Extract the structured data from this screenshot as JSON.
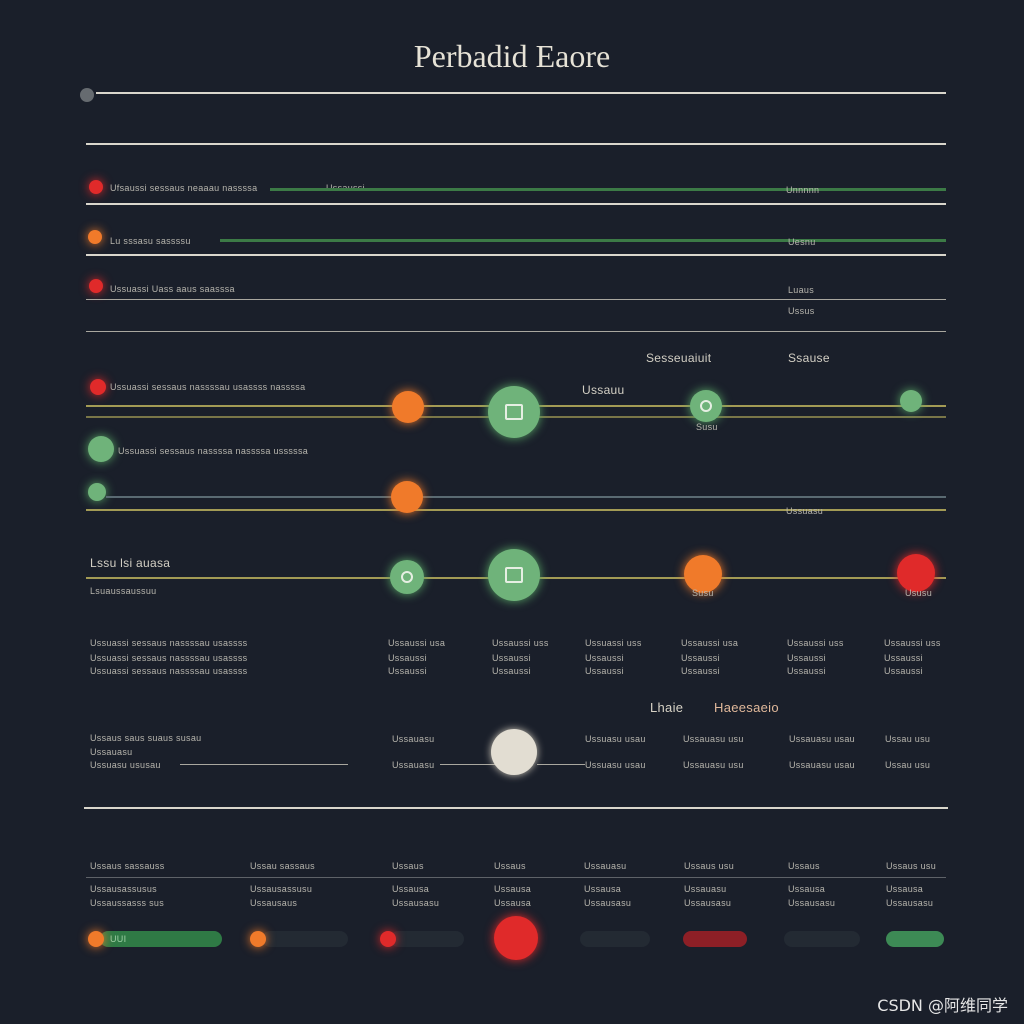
{
  "title": "Perbadid Eaore",
  "rows": [
    {
      "text": "Ufsaussi sessaus neaaau nassssa",
      "mid": "Ussaussi",
      "right": "Unnnnn"
    },
    {
      "text": "Lu sssasu sassssu",
      "right": "Uesnu"
    },
    {
      "text": "Ussuassi Uass aaus saasssa",
      "right": "Luaus",
      "right2": "Ussus"
    }
  ],
  "middle": {
    "header_left": "Sesseuaiuit",
    "header_right": "Ssause",
    "label_mid": "Ussauu",
    "label_small": "Susu",
    "row1_text": "Ussuassi sessaus nassssau usassss nassssa",
    "row2_text": "Ussuassi sessaus nassssa nassssa usssssa",
    "row3_text": "Ussuasu",
    "row4_label": "Lssu lsi auasa",
    "row4_sub": "Lsuaussaussuu",
    "label_small2": "Susu",
    "label_small3": "Ususu"
  },
  "grid": [
    [
      "Ussuassi sessaus nassssau usassss",
      "Ussuassi sessaus nassssau usassss",
      "Ussuassi sessaus nassssau usassss"
    ],
    [
      "Ussaussi usa",
      "Ussaussi",
      "Ussaussi"
    ],
    [
      "Ussaussi uss",
      "Ussaussi",
      "Ussaussi"
    ],
    [
      "Ussuassi uss",
      "Ussaussi",
      "Ussaussi"
    ],
    [
      "Ussaussi usa",
      "Ussaussi",
      "Ussaussi"
    ],
    [
      "Ussaussi uss",
      "Ussaussi",
      "Ussaussi"
    ],
    [
      "Ussaussi uss",
      "Ussaussi",
      "Ussaussi"
    ]
  ],
  "lower": {
    "header_left": "Lhaie",
    "header_right": "Haeesaeio",
    "texts": [
      [
        "Ussaus saus suaus susau",
        "Ussauasu",
        "Ussuasu ususau"
      ],
      [
        "Ussauasu",
        "Ussauasu"
      ],
      [
        "Ussuasu usau",
        "Ussuasu usau"
      ],
      [
        "Ussauasu usu",
        "Ussauasu usu"
      ],
      [
        "Ussauasu usau",
        "Ussauasu usau"
      ],
      [
        "Ussau usu",
        "Ussau usu"
      ]
    ]
  },
  "footer": {
    "cols": [
      [
        "Ussaus sassauss",
        "Ussausassusus",
        "Ussaussasss sus"
      ],
      [
        "Ussau sassaus",
        "Ussausassusu",
        "Ussausaus"
      ],
      [
        "Ussaus",
        "Ussausa",
        "Ussausasu"
      ],
      [
        "Ussaus",
        "Ussausa",
        "Ussausa"
      ],
      [
        "Ussauasu",
        "Ussausa",
        "Ussausasu"
      ],
      [
        "Ussaus usu",
        "Ussauasu",
        "Ussausasu"
      ],
      [
        "Ussaus",
        "Ussausa",
        "Ussausasu"
      ],
      [
        "Ussaus usu",
        "Ussausa",
        "Ussausasu"
      ]
    ],
    "progress_label": "UUI"
  },
  "watermark": "CSDN @阿维同学",
  "colors": {
    "background": "#1a1f2a",
    "orange": "#f07a2a",
    "red": "#e02a2a",
    "green": "#6fb37a",
    "line": "#d9d6cc"
  }
}
